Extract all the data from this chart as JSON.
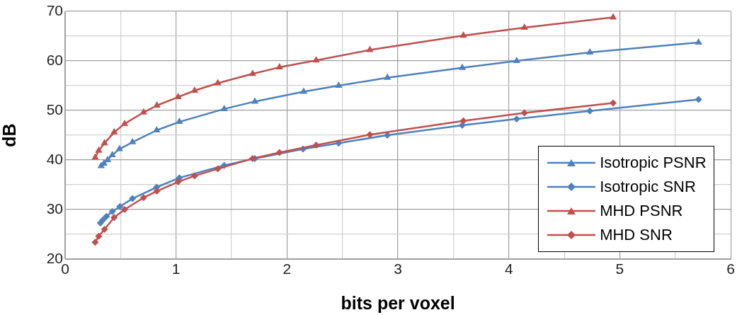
{
  "chart_data": {
    "type": "line",
    "xlabel": "bits per voxel",
    "ylabel": "dB",
    "xlim": [
      0,
      6
    ],
    "xticks": [
      0,
      {
        "value": 0.5,
        "label": null
      },
      1,
      {
        "value": 1.5,
        "label": null
      },
      2,
      {
        "value": 2.5,
        "label": null
      },
      3,
      {
        "value": 3.5,
        "label": null
      },
      4,
      {
        "value": 4.5,
        "label": null
      },
      5,
      {
        "value": 5.5,
        "label": null
      },
      6
    ],
    "ylim": [
      20,
      70
    ],
    "yticks": [
      20,
      {
        "value": 25,
        "label": null
      },
      30,
      {
        "value": 35,
        "label": null
      },
      40,
      {
        "value": 45,
        "label": null
      },
      50,
      {
        "value": 55,
        "label": null
      },
      60,
      {
        "value": 65,
        "label": null
      },
      70
    ],
    "grid": true,
    "legend": "bottom right",
    "line_style": "solid",
    "series": [
      {
        "name": "Isotropic PSNR",
        "color": "#4f81bd",
        "marker": "triangle",
        "x": [
          0.325,
          0.35,
          0.383,
          0.425,
          0.49,
          0.607,
          0.825,
          1.03,
          1.434,
          1.71,
          2.15,
          2.466,
          2.905,
          3.58,
          4.07,
          4.73,
          5.71
        ],
        "values": [
          38.8,
          39.3,
          40.0,
          41.0,
          42.2,
          43.6,
          46.0,
          47.7,
          50.3,
          51.8,
          53.8,
          55.0,
          56.6,
          58.6,
          60.0,
          61.7,
          63.7
        ]
      },
      {
        "name": "Isotropic SNR",
        "color": "#4f81bd",
        "marker": "diamond",
        "x": [
          0.318,
          0.34,
          0.372,
          0.425,
          0.494,
          0.607,
          0.825,
          1.03,
          1.434,
          1.71,
          2.145,
          2.466,
          2.905,
          3.58,
          4.07,
          4.73,
          5.71
        ],
        "values": [
          27.3,
          27.9,
          28.6,
          29.6,
          30.6,
          32.2,
          34.5,
          36.4,
          38.9,
          40.3,
          42.2,
          43.4,
          45.0,
          47.0,
          48.3,
          49.9,
          52.2
        ]
      },
      {
        "name": "MHD PSNR",
        "color": "#c0504d",
        "marker": "triangle",
        "x": [
          0.271,
          0.303,
          0.355,
          0.442,
          0.536,
          0.707,
          0.827,
          1.019,
          1.167,
          1.376,
          1.69,
          1.932,
          2.263,
          2.747,
          3.59,
          4.14,
          4.94
        ],
        "values": [
          40.5,
          41.9,
          43.4,
          45.6,
          47.3,
          49.6,
          51.0,
          52.7,
          54.0,
          55.5,
          57.4,
          58.7,
          60.1,
          62.2,
          65.1,
          66.7,
          68.8
        ]
      },
      {
        "name": "MHD SNR",
        "color": "#c0504d",
        "marker": "diamond",
        "x": [
          0.271,
          0.303,
          0.355,
          0.442,
          0.536,
          0.707,
          0.827,
          1.019,
          1.167,
          1.376,
          1.69,
          1.932,
          2.263,
          2.747,
          3.59,
          4.14,
          4.94
        ],
        "values": [
          23.4,
          24.6,
          26.0,
          28.4,
          30.0,
          32.4,
          33.7,
          35.6,
          36.8,
          38.2,
          40.3,
          41.5,
          43.0,
          45.1,
          47.9,
          49.5,
          51.5
        ]
      }
    ]
  }
}
